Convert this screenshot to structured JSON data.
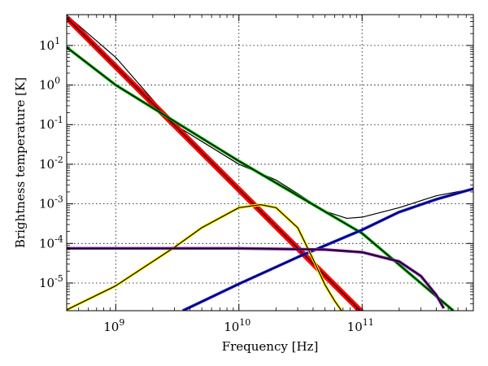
{
  "chart_data": {
    "type": "line",
    "title": "",
    "xlabel": "Frequency [Hz]",
    "ylabel": "Brightness temperature [K]",
    "x_scale": "log",
    "y_scale": "log",
    "xlim": [
      400000000.0,
      800000000000.0
    ],
    "ylim": [
      2e-06,
      60
    ],
    "grid": true,
    "x_ticks": [
      {
        "value": 1000000000.0,
        "base": "10",
        "exp": "9"
      },
      {
        "value": 10000000000.0,
        "base": "10",
        "exp": "10"
      },
      {
        "value": 100000000000.0,
        "base": "10",
        "exp": "11"
      }
    ],
    "y_ticks": [
      {
        "value": 10,
        "base": "10",
        "exp": "1"
      },
      {
        "value": 1,
        "base": "10",
        "exp": "0"
      },
      {
        "value": 0.1,
        "base": "10",
        "exp": "-1"
      },
      {
        "value": 0.01,
        "base": "10",
        "exp": "-2"
      },
      {
        "value": 0.001,
        "base": "10",
        "exp": "-3"
      },
      {
        "value": 0.0001,
        "base": "10",
        "exp": "-4"
      },
      {
        "value": 1e-05,
        "base": "10",
        "exp": "-5"
      }
    ],
    "series": [
      {
        "color": "#000000",
        "stroke": 1.2,
        "halo": "",
        "x": [
          400000000.0,
          1000000000.0,
          3000000000.0,
          10000000000.0,
          20000000000.0,
          30000000000.0,
          50000000000.0,
          75000000000.0,
          100000000000.0,
          200000000000.0,
          400000000000.0,
          800000000000.0
        ],
        "y": [
          58,
          5,
          0.1,
          0.01,
          0.004,
          0.0018,
          0.00065,
          0.00043,
          0.00046,
          0.0008,
          0.0016,
          0.0024
        ]
      },
      {
        "color": "#000000",
        "stroke": 1.2,
        "halo": "#ff0000",
        "x": [
          400000000.0,
          100000000000.0
        ],
        "y": [
          50,
          1.8e-06
        ]
      },
      {
        "color": "#000000",
        "stroke": 1.2,
        "halo": "#00aa00",
        "x": [
          400000000.0,
          1000000000.0,
          10000000000.0,
          100000000000.0,
          550000000000.0
        ],
        "y": [
          9,
          1.0,
          0.012,
          0.00018,
          2e-06
        ]
      },
      {
        "color": "#000000",
        "stroke": 1.2,
        "halo": "#1a1aff",
        "x": [
          3500000000.0,
          10000000000.0,
          30000000000.0,
          100000000000.0,
          200000000000.0,
          400000000000.0,
          800000000000.0
        ],
        "y": [
          2e-06,
          9.5e-06,
          4.5e-05,
          0.00022,
          0.00062,
          0.0013,
          0.0024
        ]
      },
      {
        "color": "#000000",
        "stroke": 1.2,
        "halo": "#ffee00",
        "x": [
          400000000.0,
          1000000000.0,
          2000000000.0,
          3000000000.0,
          5000000000.0,
          10000000000.0,
          15000000000.0,
          20000000000.0,
          30000000000.0,
          40000000000.0,
          50000000000.0,
          60000000000.0,
          75000000000.0
        ],
        "y": [
          2.1e-06,
          8.5e-06,
          3.5e-05,
          8e-05,
          0.00025,
          0.0008,
          0.00095,
          0.0008,
          0.00025,
          4e-05,
          9e-06,
          3.5e-06,
          1.3e-06
        ]
      },
      {
        "color": "#000000",
        "stroke": 1.2,
        "halo": "#7a1aa0",
        "x": [
          400000000.0,
          10000000000.0,
          50000000000.0,
          100000000000.0,
          200000000000.0,
          300000000000.0,
          400000000000.0,
          460000000000.0
        ],
        "y": [
          7.5e-05,
          7.5e-05,
          7e-05,
          6e-05,
          3.5e-05,
          1.5e-05,
          5e-06,
          2.3e-06
        ]
      }
    ]
  }
}
